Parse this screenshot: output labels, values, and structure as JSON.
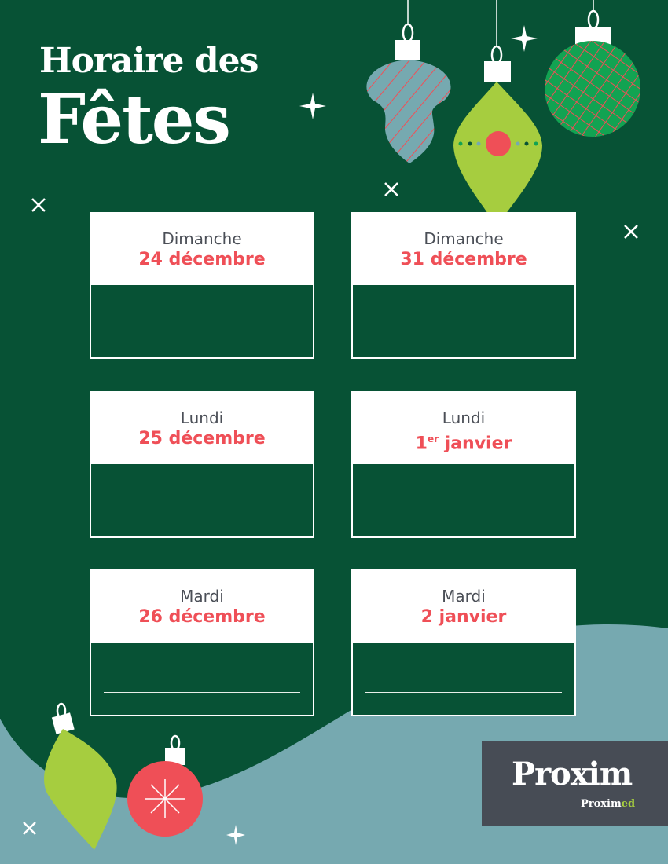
{
  "title": {
    "line1": "Horaire des",
    "line2": "Fêtes"
  },
  "cards": [
    {
      "day": "Dimanche",
      "date": "24 décembre",
      "hours": ""
    },
    {
      "day": "Dimanche",
      "date": "31 décembre",
      "hours": ""
    },
    {
      "day": "Lundi",
      "date": "25 décembre",
      "hours": ""
    },
    {
      "day": "Lundi",
      "date_num": "1",
      "date_sup": "er",
      "date_rest": " janvier",
      "hours": ""
    },
    {
      "day": "Mardi",
      "date": "26 décembre",
      "hours": ""
    },
    {
      "day": "Mardi",
      "date": "2 janvier",
      "hours": ""
    }
  ],
  "logo": {
    "main": "Proxim",
    "sub_a": "Proxim",
    "sub_b": "ed"
  },
  "colors": {
    "background": "#075235",
    "wave": "#76a9b0",
    "accent_red": "#ef4f57",
    "lime": "#a6cd3f",
    "green": "#12a352",
    "logo_bg": "#474c55"
  },
  "icons": [
    "ornament-icon",
    "sparkle-icon",
    "star-icon"
  ]
}
